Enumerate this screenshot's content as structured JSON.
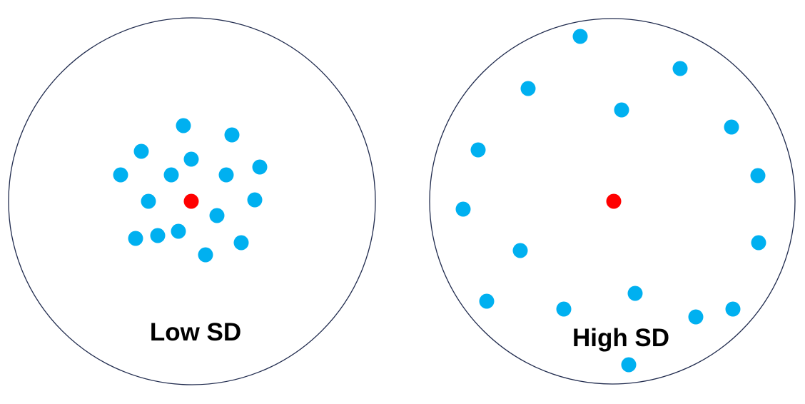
{
  "colors": {
    "circle_stroke": "#1f2a4d",
    "dot_blue": "#00b0f0",
    "dot_red": "#ff0000",
    "text": "#000000"
  },
  "panels": [
    {
      "label": "Low SD",
      "spread": "low"
    },
    {
      "label": "High SD",
      "spread": "high"
    }
  ]
}
